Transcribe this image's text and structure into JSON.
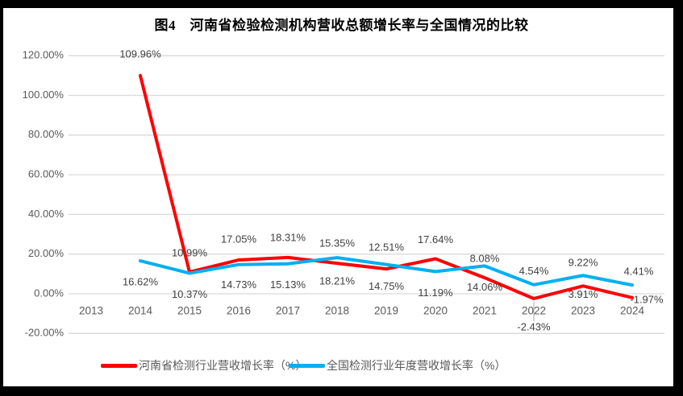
{
  "title": "图4　河南省检验检测机构营收总额增长率与全国情况的比较",
  "colors": {
    "henan": "#FF0000",
    "national": "#00B0F0",
    "gridline": "#D9D9D9",
    "axis_text": "#595959",
    "label_text": "#404040",
    "leader_line": "#A6A6A6",
    "frame": "#000000",
    "background": "#FFFFFF"
  },
  "chart_data": {
    "type": "line",
    "title": "图4　河南省检验检测机构营收总额增长率与全国情况的比较",
    "categories": [
      "2013",
      "2014",
      "2015",
      "2016",
      "2017",
      "2018",
      "2019",
      "2020",
      "2021",
      "2022",
      "2023",
      "2024"
    ],
    "series": [
      {
        "name": "河南省检测行业营收增长率（%）",
        "color": "#FF0000",
        "values": [
          null,
          109.96,
          10.99,
          17.05,
          18.31,
          15.35,
          12.51,
          17.64,
          8.08,
          -2.43,
          3.91,
          -1.97
        ],
        "labels": [
          null,
          "109.96%",
          "10.99%",
          "17.05%",
          "18.31%",
          "15.35%",
          "12.51%",
          "17.64%",
          "8.08%",
          "-2.43%",
          "3.91%",
          "-1.97%"
        ],
        "label_offsets": [
          null,
          [
            0,
            -26
          ],
          [
            0,
            -23
          ],
          [
            0,
            -25
          ],
          [
            0,
            -24
          ],
          [
            0,
            -24
          ],
          [
            0,
            -26
          ],
          [
            0,
            -23
          ],
          [
            0,
            -23
          ],
          [
            0,
            36
          ],
          [
            0,
            11
          ],
          [
            18,
            3
          ]
        ],
        "leader_indices": [
          9
        ]
      },
      {
        "name": "全国检测行业年度营收增长率（%）",
        "color": "#00B0F0",
        "values": [
          null,
          16.62,
          10.37,
          14.73,
          15.13,
          18.21,
          14.75,
          11.19,
          14.06,
          4.54,
          9.22,
          4.41
        ],
        "labels": [
          null,
          "16.62%",
          "10.37%",
          "14.73%",
          "15.13%",
          "18.21%",
          "14.75%",
          "11.19%",
          "14.06%",
          "4.54%",
          "9.22%",
          "4.41%"
        ],
        "label_offsets": [
          null,
          [
            0,
            27
          ],
          [
            0,
            27
          ],
          [
            0,
            26
          ],
          [
            0,
            27
          ],
          [
            0,
            30
          ],
          [
            0,
            28
          ],
          [
            0,
            27
          ],
          [
            0,
            27
          ],
          [
            0,
            -16
          ],
          [
            0,
            -15
          ],
          [
            8,
            -16
          ]
        ],
        "leader_indices": []
      }
    ],
    "yticks": [
      {
        "value": 120,
        "label": "120.00%"
      },
      {
        "value": 100,
        "label": "100.00%"
      },
      {
        "value": 80,
        "label": "80.00%"
      },
      {
        "value": 60,
        "label": "60.00%"
      },
      {
        "value": 40,
        "label": "40.00%"
      },
      {
        "value": 20,
        "label": "20.00%"
      },
      {
        "value": 0,
        "label": "0.00%"
      },
      {
        "value": -20,
        "label": "-20.00%"
      }
    ],
    "ylim": [
      -20,
      120
    ],
    "grid": true,
    "legend_position": "bottom"
  }
}
